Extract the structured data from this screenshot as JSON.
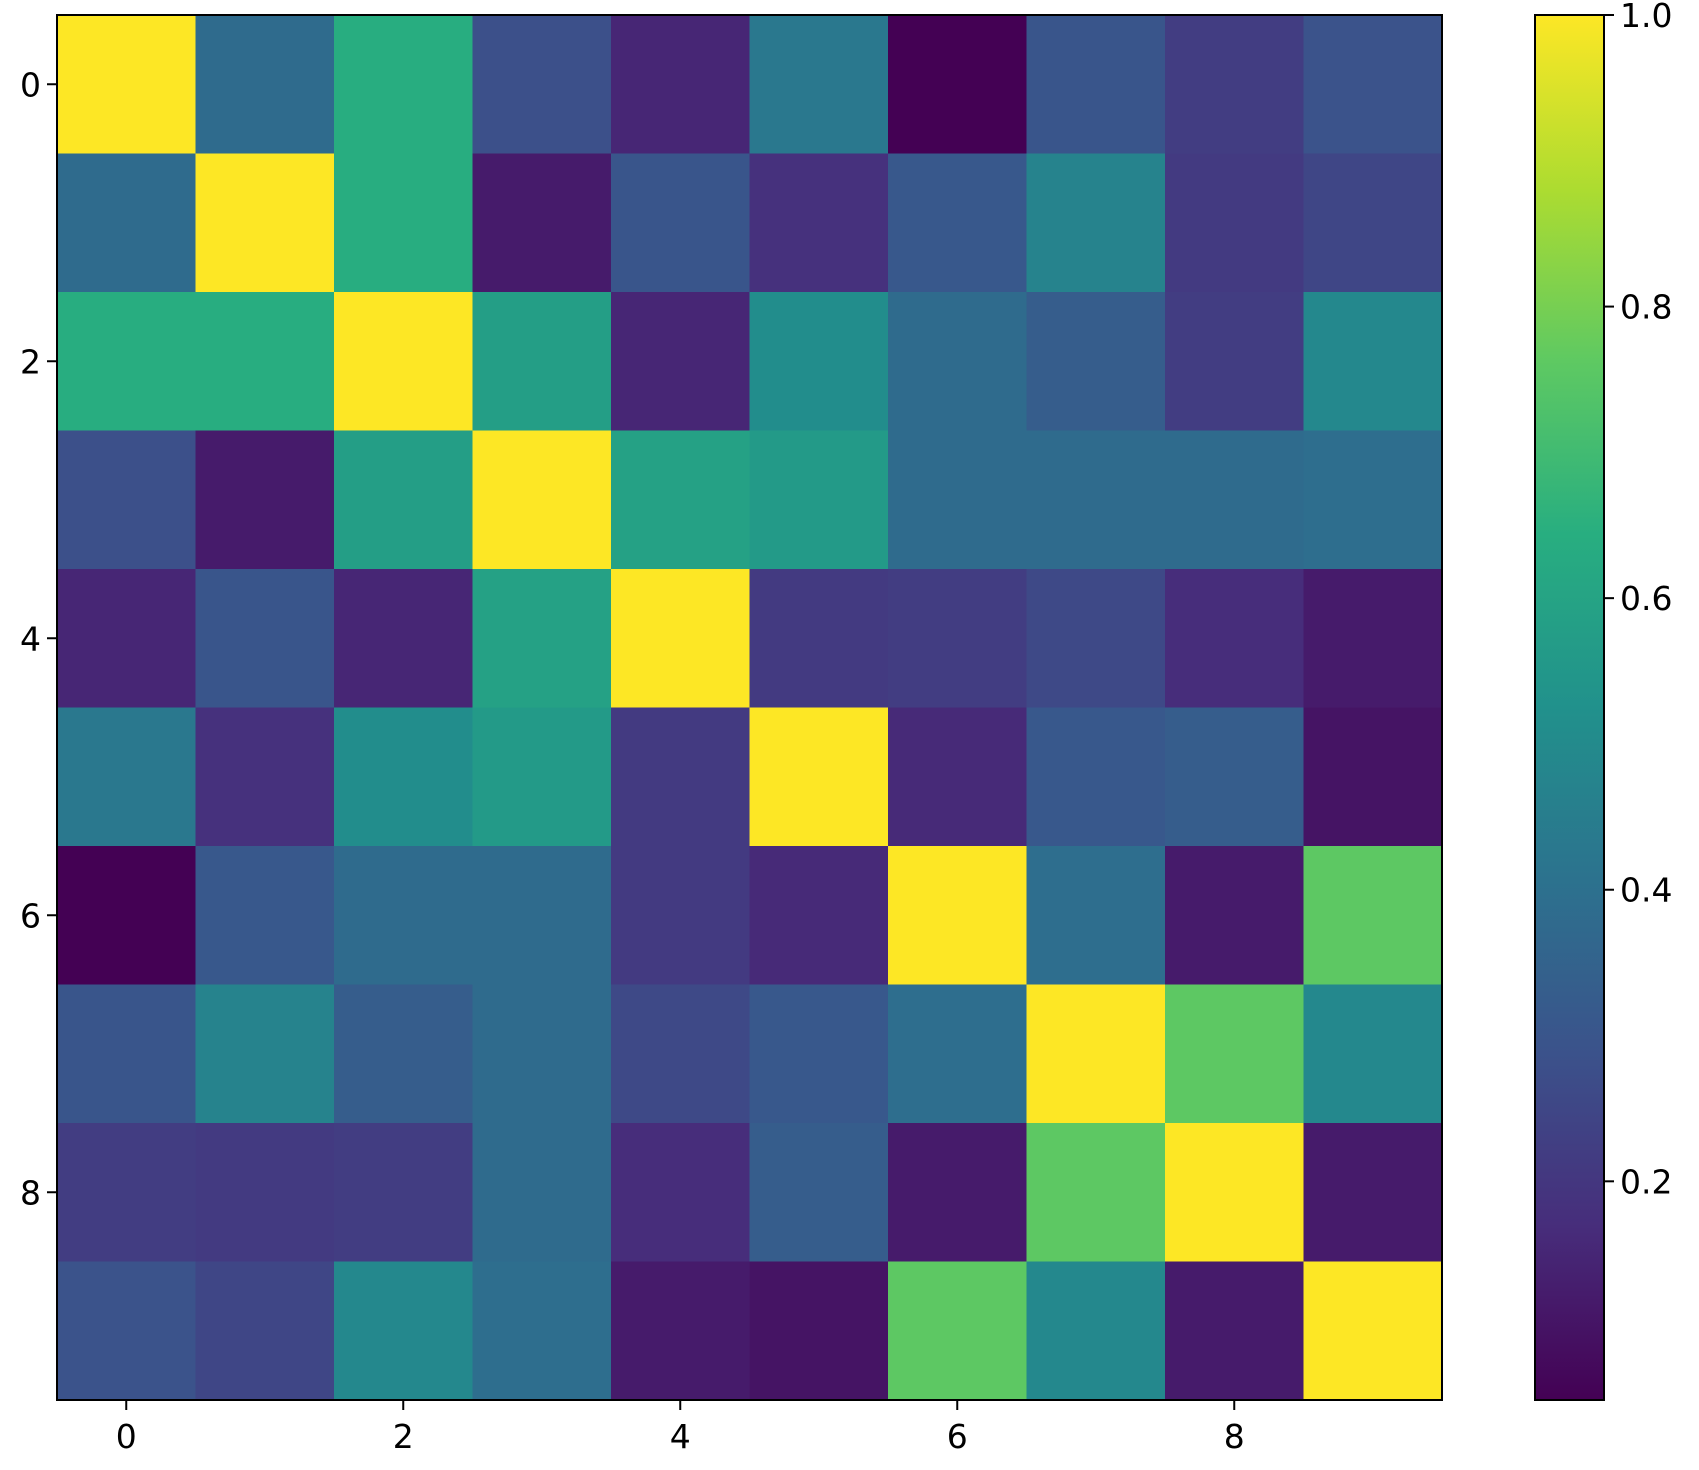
{
  "chart_data": {
    "type": "heatmap",
    "colormap": "viridis",
    "x_ticks": [
      0,
      2,
      4,
      6,
      8
    ],
    "y_ticks": [
      0,
      2,
      4,
      6,
      8
    ],
    "x_tick_labels": [
      "0",
      "2",
      "4",
      "6",
      "8"
    ],
    "y_tick_labels": [
      "0",
      "2",
      "4",
      "6",
      "8"
    ],
    "colorbar": {
      "range": [
        0.05,
        1.0
      ],
      "ticks": [
        0.2,
        0.4,
        0.6,
        0.8,
        1.0
      ],
      "tick_labels": [
        "0.2",
        "0.4",
        "0.6",
        "0.8",
        "1.0"
      ]
    },
    "matrix": [
      [
        1.0,
        0.38,
        0.64,
        0.28,
        0.15,
        0.43,
        0.05,
        0.3,
        0.22,
        0.29
      ],
      [
        0.38,
        1.0,
        0.64,
        0.12,
        0.3,
        0.18,
        0.31,
        0.47,
        0.21,
        0.25
      ],
      [
        0.64,
        0.64,
        1.0,
        0.58,
        0.15,
        0.51,
        0.38,
        0.33,
        0.22,
        0.49
      ],
      [
        0.28,
        0.12,
        0.58,
        1.0,
        0.59,
        0.56,
        0.38,
        0.38,
        0.38,
        0.39
      ],
      [
        0.15,
        0.3,
        0.15,
        0.59,
        1.0,
        0.21,
        0.22,
        0.26,
        0.17,
        0.12
      ],
      [
        0.43,
        0.18,
        0.51,
        0.56,
        0.21,
        1.0,
        0.16,
        0.31,
        0.33,
        0.1
      ],
      [
        0.05,
        0.31,
        0.38,
        0.38,
        0.21,
        0.16,
        1.0,
        0.39,
        0.12,
        0.76
      ],
      [
        0.3,
        0.47,
        0.33,
        0.38,
        0.26,
        0.31,
        0.39,
        1.0,
        0.76,
        0.49
      ],
      [
        0.22,
        0.21,
        0.22,
        0.38,
        0.17,
        0.33,
        0.12,
        0.76,
        1.0,
        0.12
      ],
      [
        0.29,
        0.25,
        0.49,
        0.39,
        0.12,
        0.1,
        0.76,
        0.49,
        0.12,
        1.0
      ]
    ]
  }
}
